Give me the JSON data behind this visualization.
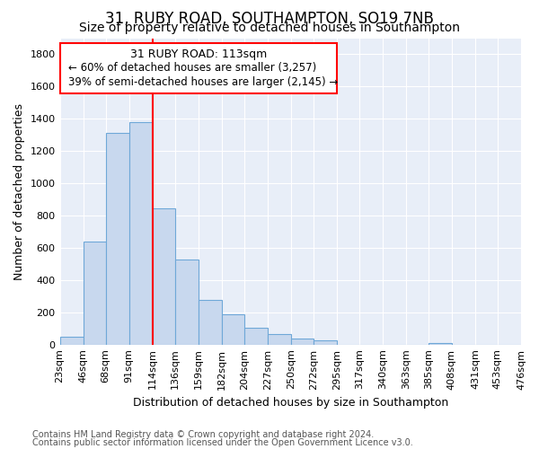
{
  "title": "31, RUBY ROAD, SOUTHAMPTON, SO19 7NB",
  "subtitle": "Size of property relative to detached houses in Southampton",
  "xlabel": "Distribution of detached houses by size in Southampton",
  "ylabel": "Number of detached properties",
  "footer_line1": "Contains HM Land Registry data © Crown copyright and database right 2024.",
  "footer_line2": "Contains public sector information licensed under the Open Government Licence v3.0.",
  "bin_edges": [
    23,
    46,
    68,
    91,
    114,
    136,
    159,
    182,
    204,
    227,
    250,
    272,
    295,
    317,
    340,
    363,
    385,
    408,
    431,
    453,
    476
  ],
  "bar_heights": [
    50,
    640,
    1310,
    1380,
    845,
    530,
    275,
    185,
    105,
    65,
    37,
    25,
    0,
    0,
    0,
    0,
    12,
    0,
    0,
    0
  ],
  "bar_color": "#c8d8ee",
  "bar_edge_color": "#6fa8d8",
  "tick_labels": [
    "23sqm",
    "46sqm",
    "68sqm",
    "91sqm",
    "114sqm",
    "136sqm",
    "159sqm",
    "182sqm",
    "204sqm",
    "227sqm",
    "250sqm",
    "272sqm",
    "295sqm",
    "317sqm",
    "340sqm",
    "363sqm",
    "385sqm",
    "408sqm",
    "431sqm",
    "453sqm",
    "476sqm"
  ],
  "ylim": [
    0,
    1900
  ],
  "yticks": [
    0,
    200,
    400,
    600,
    800,
    1000,
    1200,
    1400,
    1600,
    1800
  ],
  "property_line_x": 114,
  "ann_line1": "31 RUBY ROAD: 113sqm",
  "ann_line2": "← 60% of detached houses are smaller (3,257)",
  "ann_line3": "39% of semi-detached houses are larger (2,145) →",
  "background_color": "#ffffff",
  "plot_bg_color": "#e8eef8",
  "grid_color": "#ffffff",
  "title_fontsize": 12,
  "subtitle_fontsize": 10,
  "axis_label_fontsize": 9,
  "tick_fontsize": 8,
  "footer_fontsize": 7
}
